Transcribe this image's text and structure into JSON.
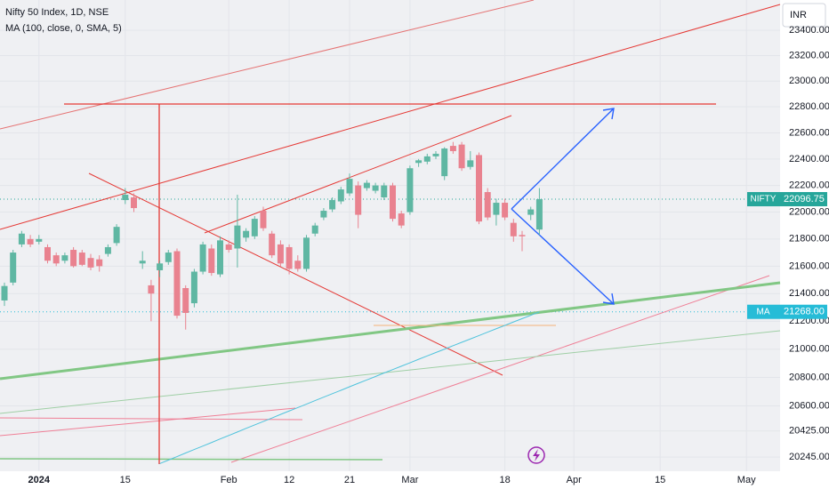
{
  "chart_data": {
    "type": "candlestick",
    "title": "Nifty 50 Index, 1D, NSE",
    "indicator": "MA (100, close, 0, SMA, 5)",
    "currency": "INR",
    "symbol": "NIFTY",
    "ma_name": "MA",
    "last_labels": {
      "close": "22096.75",
      "ma": "21268.00"
    },
    "log_scale": true,
    "grid": true,
    "up_color": "#5fb7a3",
    "down_color": "#e9828f",
    "ma_color": "#4fc3dc",
    "categories": [
      null,
      null,
      null,
      null,
      "2024",
      null,
      null,
      null,
      null,
      null,
      null,
      null,
      null,
      null,
      "15",
      null,
      null,
      null,
      null,
      null,
      null,
      null,
      null,
      null,
      null,
      null,
      "Feb",
      null,
      null,
      null,
      null,
      null,
      null,
      "12",
      null,
      null,
      null,
      null,
      null,
      null,
      "21",
      null,
      null,
      null,
      null,
      null,
      null,
      "Mar",
      null,
      null,
      null,
      null,
      null,
      null,
      null,
      null,
      null,
      null,
      "18",
      null,
      null,
      null,
      null,
      null,
      null,
      null,
      "Apr",
      null,
      null,
      null,
      null,
      null,
      null,
      null,
      null,
      null,
      "15",
      null,
      null,
      null,
      null,
      null,
      null,
      null,
      null,
      null,
      "May",
      null
    ],
    "open": [
      21350,
      21480,
      21760,
      21800,
      21780,
      21740,
      21680,
      21640,
      21720,
      21700,
      21660,
      21650,
      21690,
      21770,
      22090,
      22110,
      21620,
      21460,
      21570,
      21630,
      21710,
      21440,
      21330,
      21560,
      21730,
      21540,
      21760,
      21730,
      21810,
      21820,
      22010,
      21840,
      21760,
      21740,
      21640,
      21580,
      21840,
      21960,
      22020,
      22080,
      22140,
      22200,
      22180,
      22160,
      22110,
      22200,
      21990,
      22000,
      22370,
      22380,
      22420,
      22270,
      22500,
      22510,
      22340,
      22430,
      22150,
      21980,
      22070,
      21920,
      21830,
      21980,
      21870,
      null,
      null,
      null,
      null,
      null,
      null,
      null,
      null,
      null,
      null,
      null,
      null,
      null,
      null,
      null,
      null,
      null,
      null,
      null,
      null,
      null,
      null,
      null,
      null,
      null
    ],
    "high": [
      21480,
      21720,
      21860,
      21830,
      21830,
      21760,
      21700,
      21700,
      21740,
      21720,
      21690,
      21680,
      21760,
      21910,
      22180,
      22140,
      21710,
      21500,
      21640,
      21720,
      21730,
      21460,
      21580,
      21780,
      21760,
      21820,
      21790,
      22130,
      21880,
      21970,
      22040,
      21860,
      21790,
      21760,
      21680,
      21830,
      21920,
      22030,
      22110,
      22190,
      22290,
      22230,
      22240,
      22220,
      22220,
      22220,
      22010,
      22350,
      22400,
      22440,
      22460,
      22490,
      22530,
      22530,
      22460,
      22450,
      22180,
      22100,
      22100,
      21950,
      21860,
      22040,
      22180,
      null,
      null,
      null,
      null,
      null,
      null,
      null,
      null,
      null,
      null,
      null,
      null,
      null,
      null,
      null,
      null,
      null,
      null,
      null,
      null,
      null,
      null,
      null,
      null,
      null
    ],
    "low": [
      21310,
      21460,
      21740,
      21740,
      21760,
      21620,
      21600,
      21620,
      21590,
      21600,
      21570,
      21560,
      21670,
      21750,
      22060,
      22000,
      21580,
      21200,
      21520,
      21610,
      21220,
      21140,
      21300,
      21540,
      21530,
      21520,
      21700,
      21590,
      21780,
      21800,
      21860,
      21660,
      21600,
      21540,
      21560,
      21560,
      21820,
      21940,
      22000,
      22060,
      22120,
      21880,
      22160,
      22140,
      22090,
      21930,
      21880,
      21980,
      22340,
      22360,
      22400,
      22240,
      22440,
      22310,
      22320,
      21910,
      21940,
      21900,
      21940,
      21780,
      21710,
      21940,
      21830,
      null,
      null,
      null,
      null,
      null,
      null,
      null,
      null,
      null,
      null,
      null,
      null,
      null,
      null,
      null,
      null,
      null,
      null,
      null,
      null,
      null,
      null,
      null,
      null,
      null
    ],
    "close": [
      21455,
      21700,
      21840,
      21760,
      21800,
      21640,
      21620,
      21680,
      21600,
      21610,
      21590,
      21600,
      21740,
      21890,
      22130,
      22030,
      21640,
      21400,
      21620,
      21700,
      21240,
      21260,
      21560,
      21760,
      21550,
      21790,
      21720,
      21900,
      21860,
      21950,
      21880,
      21680,
      21620,
      21580,
      21580,
      21810,
      21900,
      22010,
      22090,
      22170,
      22250,
      21980,
      22220,
      22200,
      22200,
      21950,
      21900,
      22330,
      22390,
      22420,
      22440,
      22480,
      22460,
      22330,
      22390,
      21930,
      21960,
      22070,
      21960,
      21820,
      21820,
      22020,
      22096.75,
      null,
      null,
      null,
      null,
      null,
      null,
      null,
      null,
      null,
      null,
      null,
      null,
      null,
      null,
      null,
      null,
      null,
      null,
      null,
      null,
      null,
      null,
      null,
      null,
      null
    ],
    "ma": [
      null,
      null,
      null,
      null,
      null,
      null,
      null,
      null,
      null,
      null,
      null,
      null,
      null,
      null,
      null,
      null,
      null,
      null,
      20200,
      20224,
      20248,
      20273,
      20297,
      20321,
      20345,
      20370,
      20394,
      20418,
      20443,
      20467,
      20491,
      20515,
      20540,
      20564,
      20588,
      20612,
      20637,
      20661,
      20685,
      20709,
      20734,
      20758,
      20782,
      20806,
      20831,
      20855,
      20879,
      20903,
      20928,
      20952,
      20976,
      21000,
      21025,
      21049,
      21073,
      21097,
      21122,
      21146,
      21170,
      21195,
      21219,
      21243,
      21268,
      null,
      null,
      null,
      null,
      null,
      null,
      null,
      null,
      null,
      null,
      null,
      null,
      null,
      null,
      null,
      null,
      null,
      null,
      null,
      null,
      null,
      null,
      null,
      null,
      null
    ],
    "ylim": [
      20148,
      23642
    ],
    "yticks": [
      {
        "value": 23400,
        "label": "23400.00"
      },
      {
        "value": 23200,
        "label": "23200.00"
      },
      {
        "value": 23000,
        "label": "23000.00"
      },
      {
        "value": 22800,
        "label": "22800.00"
      },
      {
        "value": 22600,
        "label": "22600.00"
      },
      {
        "value": 22400,
        "label": "22400.00"
      },
      {
        "value": 22200,
        "label": "22200.00"
      },
      {
        "value": 22000,
        "label": "22000.00"
      },
      {
        "value": 21800,
        "label": "21800.00"
      },
      {
        "value": 21600,
        "label": "21600.00"
      },
      {
        "value": 21400,
        "label": "21400.00"
      },
      {
        "value": 21200,
        "label": "21200.00"
      },
      {
        "value": 21000,
        "label": "21000.00"
      },
      {
        "value": 20800,
        "label": "20800.00"
      },
      {
        "value": 20600,
        "label": "20600.00"
      },
      {
        "value": 20425,
        "label": "20425.00"
      },
      {
        "value": 20245,
        "label": "20245.00"
      }
    ]
  }
}
